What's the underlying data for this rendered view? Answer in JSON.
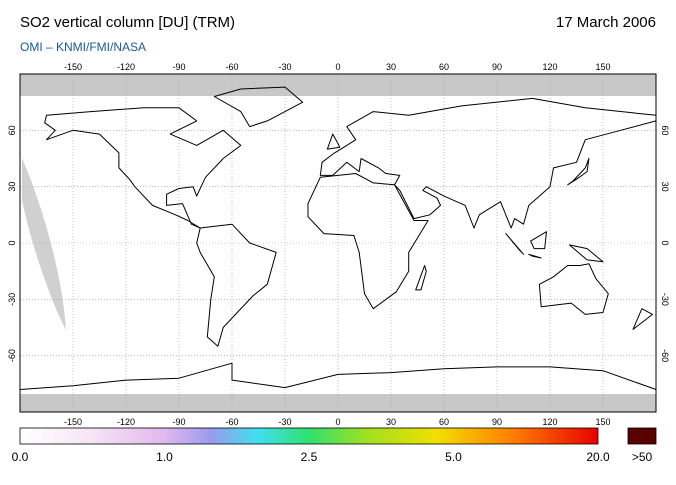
{
  "header": {
    "title": "SO2 vertical column [DU] (TRM)",
    "date": "17 March 2006",
    "source": "OMI  –  KNMI/FMI/NASA"
  },
  "map": {
    "lonlim": [
      -180,
      180
    ],
    "latlim": [
      -90,
      90
    ],
    "lon_ticks": [
      -150,
      -120,
      -90,
      -60,
      -30,
      0,
      30,
      60,
      90,
      120,
      150
    ],
    "lat_ticks": [
      -60,
      -30,
      0,
      30,
      60
    ]
  },
  "legend": {
    "labels": [
      "0.0",
      "1.0",
      "2.5",
      "5.0",
      "20.0"
    ],
    "overflow_label": ">50"
  }
}
